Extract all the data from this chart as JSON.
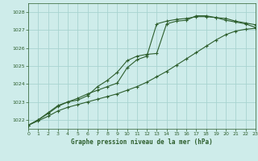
{
  "title": "Graphe pression niveau de la mer (hPa)",
  "background_color": "#ceecea",
  "grid_color": "#a8d4d0",
  "line_color": "#2d5e2d",
  "xlim": [
    0,
    23
  ],
  "ylim": [
    1021.5,
    1028.5
  ],
  "xticks": [
    0,
    1,
    2,
    3,
    4,
    5,
    6,
    7,
    8,
    9,
    10,
    11,
    12,
    13,
    14,
    15,
    16,
    17,
    18,
    19,
    20,
    21,
    22,
    23
  ],
  "yticks": [
    1022,
    1023,
    1024,
    1025,
    1026,
    1027,
    1028
  ],
  "series1_x": [
    0,
    1,
    2,
    3,
    4,
    5,
    6,
    7,
    8,
    9,
    10,
    11,
    12,
    13,
    14,
    15,
    16,
    17,
    18,
    19,
    20,
    21,
    22,
    23
  ],
  "series1_y": [
    1021.7,
    1021.95,
    1022.2,
    1022.5,
    1022.7,
    1022.85,
    1023.0,
    1023.15,
    1023.3,
    1023.45,
    1023.65,
    1023.85,
    1024.1,
    1024.4,
    1024.7,
    1025.05,
    1025.4,
    1025.75,
    1026.1,
    1026.45,
    1026.75,
    1026.95,
    1027.05,
    1027.1
  ],
  "series2_x": [
    0,
    1,
    2,
    3,
    4,
    5,
    6,
    7,
    8,
    9,
    10,
    11,
    12,
    13,
    14,
    15,
    16,
    17,
    18,
    19,
    20,
    21,
    22,
    23
  ],
  "series2_y": [
    1021.7,
    1022.0,
    1022.4,
    1022.8,
    1023.0,
    1023.2,
    1023.45,
    1023.65,
    1023.85,
    1024.05,
    1024.9,
    1025.35,
    1025.55,
    1027.35,
    1027.5,
    1027.6,
    1027.65,
    1027.75,
    1027.75,
    1027.7,
    1027.55,
    1027.45,
    1027.35,
    1027.15
  ],
  "series3_x": [
    0,
    1,
    2,
    3,
    4,
    5,
    6,
    7,
    8,
    9,
    10,
    11,
    12,
    13,
    14,
    15,
    16,
    17,
    18,
    19,
    20,
    21,
    22,
    23
  ],
  "series3_y": [
    1021.7,
    1022.0,
    1022.35,
    1022.75,
    1023.0,
    1023.1,
    1023.35,
    1023.85,
    1024.2,
    1024.65,
    1025.3,
    1025.55,
    1025.65,
    1025.7,
    1027.35,
    1027.5,
    1027.55,
    1027.8,
    1027.8,
    1027.7,
    1027.65,
    1027.5,
    1027.4,
    1027.3
  ]
}
